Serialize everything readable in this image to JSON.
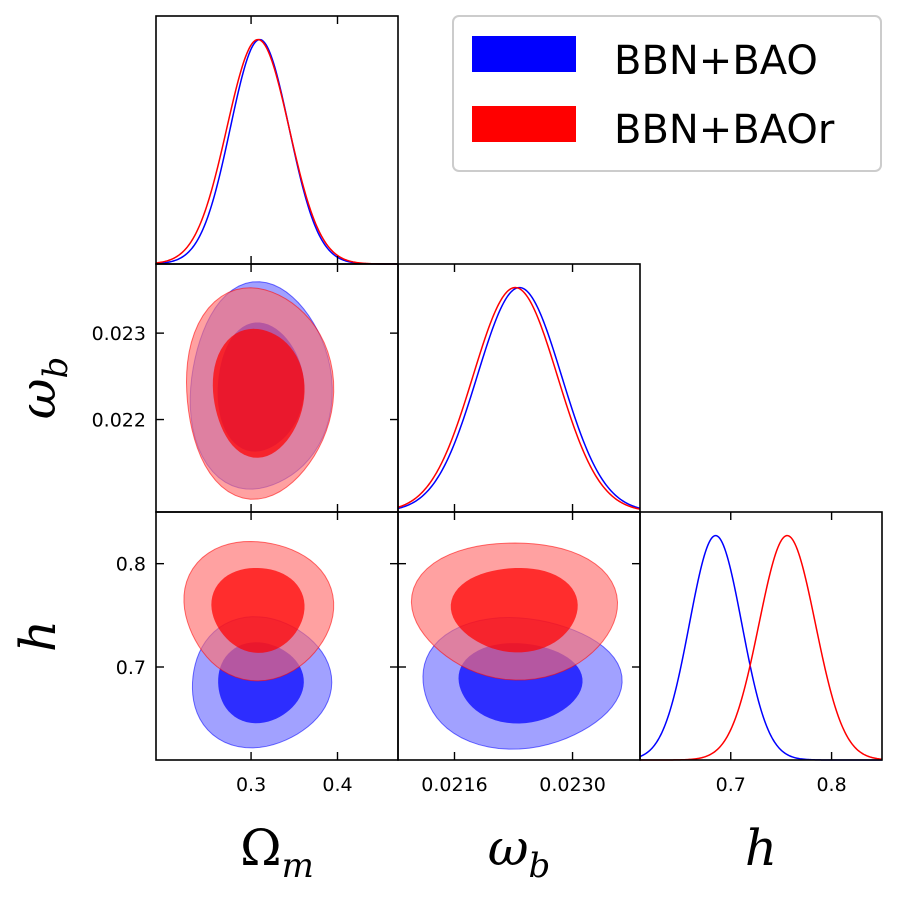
{
  "chart_data": {
    "type": "corner",
    "parameters": [
      {
        "key": "Om",
        "label": "Ω",
        "sub": "m",
        "range": [
          0.19,
          0.47
        ],
        "ticks": [
          0.3,
          0.4
        ],
        "tick_labels": [
          "0.3",
          "0.4"
        ]
      },
      {
        "key": "wb",
        "label": "ω",
        "sub": "b",
        "range": [
          0.02093,
          0.0238
        ],
        "ticks": [
          0.0216,
          0.023
        ],
        "tick_labels": [
          "0.0216",
          "0.0230"
        ],
        "y_ticks": [
          0.022,
          0.023
        ],
        "y_tick_labels": [
          "0.022",
          "0.023"
        ]
      },
      {
        "key": "h",
        "label": "h",
        "sub": "",
        "range": [
          0.61,
          0.85
        ],
        "ticks": [
          0.7,
          0.8
        ],
        "tick_labels": [
          "0.7",
          "0.8"
        ]
      }
    ],
    "series": [
      {
        "name": "BBN+BAO",
        "color": "#0000ff",
        "inner_fill": "#0000ff",
        "outer_fill": "#6f6fff",
        "mean": {
          "Om": 0.31,
          "wb": 0.02237,
          "h": 0.685
        },
        "sigma": {
          "Om": 0.034,
          "wb": 0.0005,
          "h": 0.026
        }
      },
      {
        "name": "BBN+BAOr",
        "color": "#ff0000",
        "inner_fill": "#ff0000",
        "outer_fill": "#ff6f6f",
        "mean": {
          "Om": 0.308,
          "wb": 0.02232,
          "h": 0.756
        },
        "sigma": {
          "Om": 0.036,
          "wb": 0.0005,
          "h": 0.028
        }
      }
    ],
    "legend": {
      "position": "top-right",
      "entries": [
        "BBN+BAO",
        "BBN+BAOr"
      ]
    }
  }
}
